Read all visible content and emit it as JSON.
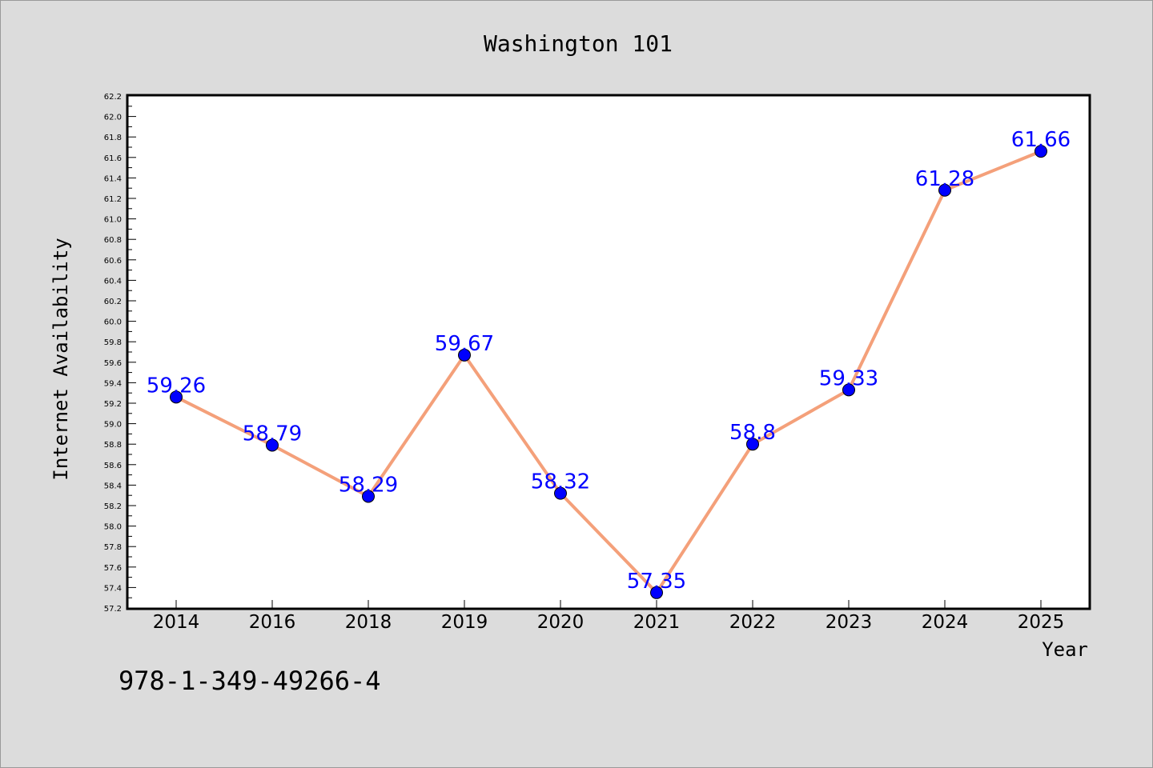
{
  "chart_data": {
    "type": "line",
    "title": "Washington 101",
    "xlabel": "Year",
    "ylabel": "Internet Availability",
    "categories": [
      "2014",
      "2016",
      "2018",
      "2019",
      "2020",
      "2021",
      "2022",
      "2023",
      "2024",
      "2025"
    ],
    "series": [
      {
        "values": [
          59.26,
          58.79,
          58.29,
          59.67,
          58.32,
          57.35,
          58.8,
          59.33,
          61.28,
          61.66
        ],
        "data_labels": [
          "59.26",
          "58.79",
          "58.29",
          "59.67",
          "58.32",
          "57.35",
          "58.8",
          "59.33",
          "61.28",
          "61.66"
        ]
      }
    ],
    "ylim": [
      57.2,
      62.2
    ],
    "yticks": [
      "57.2",
      "57.4",
      "57.6",
      "57.8",
      "58.0",
      "58.2",
      "58.4",
      "58.6",
      "58.8",
      "59.0",
      "59.2",
      "59.4",
      "59.6",
      "59.8",
      "60.0",
      "60.2",
      "60.4",
      "60.6",
      "60.8",
      "61.0",
      "61.2",
      "61.4",
      "61.6",
      "61.8",
      "62.0",
      "62.2"
    ],
    "grid": false,
    "legend": "none",
    "line_color": "#f4a07a",
    "marker_color": "#0000ff",
    "label_color": "#0000ff",
    "background_color": "#dcdcdc",
    "plot_background": "#ffffff"
  },
  "footer": {
    "isbn": "978-1-349-49266-4"
  }
}
